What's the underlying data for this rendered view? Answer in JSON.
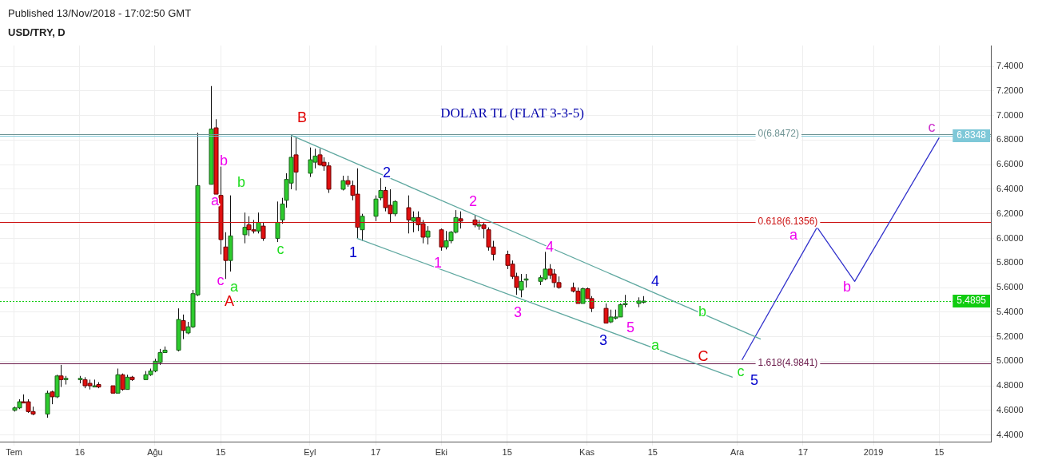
{
  "chart_data": {
    "type": "candlestick",
    "title": "USD/TRY, D",
    "subtitle": "Published 13/Nov/2018 - 17:02:50 GMT",
    "x": [
      "2018-07-02",
      "2018-07-03",
      "2018-07-04",
      "2018-07-05",
      "2018-07-06",
      "2018-07-09",
      "2018-07-10",
      "2018-07-11",
      "2018-07-12",
      "2018-07-13",
      "2018-07-16",
      "2018-07-17",
      "2018-07-18",
      "2018-07-19",
      "2018-07-20",
      "2018-07-23",
      "2018-07-24",
      "2018-07-25",
      "2018-07-26",
      "2018-07-27",
      "2018-07-30",
      "2018-07-31",
      "2018-08-01",
      "2018-08-02",
      "2018-08-03",
      "2018-08-06",
      "2018-08-07",
      "2018-08-08",
      "2018-08-09",
      "2018-08-10",
      "2018-08-13",
      "2018-08-14",
      "2018-08-15",
      "2018-08-16",
      "2018-08-17",
      "2018-08-20",
      "2018-08-21",
      "2018-08-22",
      "2018-08-23",
      "2018-08-24",
      "2018-08-27",
      "2018-08-28",
      "2018-08-29",
      "2018-08-30",
      "2018-08-31",
      "2018-09-03",
      "2018-09-04",
      "2018-09-05",
      "2018-09-06",
      "2018-09-07",
      "2018-09-10",
      "2018-09-11",
      "2018-09-12",
      "2018-09-13",
      "2018-09-14",
      "2018-09-17",
      "2018-09-18",
      "2018-09-19",
      "2018-09-20",
      "2018-09-21",
      "2018-09-24",
      "2018-09-25",
      "2018-09-26",
      "2018-09-27",
      "2018-09-28",
      "2018-10-01",
      "2018-10-02",
      "2018-10-03",
      "2018-10-04",
      "2018-10-05",
      "2018-10-08",
      "2018-10-09",
      "2018-10-10",
      "2018-10-11",
      "2018-10-12",
      "2018-10-15",
      "2018-10-16",
      "2018-10-17",
      "2018-10-18",
      "2018-10-19",
      "2018-10-22",
      "2018-10-23",
      "2018-10-24",
      "2018-10-25",
      "2018-10-26",
      "2018-10-29",
      "2018-10-30",
      "2018-10-31",
      "2018-11-01",
      "2018-11-02",
      "2018-11-05",
      "2018-11-06",
      "2018-11-07",
      "2018-11-08",
      "2018-11-09",
      "2018-11-12",
      "2018-11-13"
    ],
    "ohlc": [
      [
        4.6,
        4.63,
        4.59,
        4.62
      ],
      [
        4.62,
        4.69,
        4.61,
        4.67
      ],
      [
        4.67,
        4.73,
        4.66,
        4.66
      ],
      [
        4.67,
        4.69,
        4.58,
        4.59
      ],
      [
        4.59,
        4.63,
        4.56,
        4.57
      ],
      [
        4.57,
        4.76,
        4.54,
        4.74
      ],
      [
        4.75,
        4.76,
        4.65,
        4.71
      ],
      [
        4.71,
        4.89,
        4.7,
        4.88
      ],
      [
        4.88,
        4.97,
        4.79,
        4.85
      ],
      [
        4.86,
        4.88,
        4.81,
        4.86
      ],
      [
        4.85,
        4.88,
        4.82,
        4.86
      ],
      [
        4.85,
        4.87,
        4.78,
        4.8
      ],
      [
        4.82,
        4.85,
        4.77,
        4.8
      ],
      [
        4.8,
        4.85,
        4.79,
        4.8
      ],
      [
        4.81,
        4.83,
        4.78,
        4.79
      ],
      [
        4.8,
        4.8,
        4.74,
        4.74
      ],
      [
        4.74,
        4.94,
        4.74,
        4.89
      ],
      [
        4.89,
        4.9,
        4.76,
        4.77
      ],
      [
        4.77,
        4.89,
        4.77,
        4.87
      ],
      [
        4.87,
        4.88,
        4.84,
        4.85
      ],
      [
        4.85,
        4.92,
        4.85,
        4.89
      ],
      [
        4.89,
        4.94,
        4.88,
        4.92
      ],
      [
        4.92,
        5.02,
        4.91,
        5.0
      ],
      [
        4.99,
        5.1,
        4.97,
        5.07
      ],
      [
        5.07,
        5.12,
        5.07,
        5.09
      ],
      [
        5.09,
        5.43,
        5.08,
        5.34
      ],
      [
        5.33,
        5.38,
        5.18,
        5.25
      ],
      [
        5.23,
        5.32,
        5.22,
        5.28
      ],
      [
        5.28,
        5.58,
        5.27,
        5.55
      ],
      [
        5.54,
        6.86,
        5.53,
        6.43
      ],
      [
        6.44,
        7.24,
        6.44,
        6.89
      ],
      [
        6.9,
        6.97,
        6.36,
        6.36
      ],
      [
        6.35,
        6.6,
        5.87,
        5.99
      ],
      [
        5.93,
        6.05,
        5.67,
        5.82
      ],
      [
        5.82,
        6.35,
        5.73,
        6.02
      ],
      [
        6.03,
        6.21,
        5.96,
        6.09
      ],
      [
        6.11,
        6.18,
        6.02,
        6.07
      ],
      [
        6.07,
        6.15,
        6.04,
        6.06
      ],
      [
        6.06,
        6.21,
        6.04,
        6.13
      ],
      [
        6.1,
        6.13,
        5.98,
        6.0
      ],
      [
        6.0,
        6.3,
        5.97,
        6.13
      ],
      [
        6.15,
        6.33,
        6.12,
        6.28
      ],
      [
        6.31,
        6.53,
        6.25,
        6.48
      ],
      [
        6.45,
        6.84,
        6.4,
        6.66
      ],
      [
        6.68,
        6.82,
        6.39,
        6.54
      ],
      [
        6.53,
        6.74,
        6.5,
        6.64
      ],
      [
        6.62,
        6.73,
        6.57,
        6.67
      ],
      [
        6.68,
        6.73,
        6.59,
        6.6
      ],
      [
        6.62,
        6.66,
        6.55,
        6.59
      ],
      [
        6.59,
        6.62,
        6.37,
        6.4
      ],
      [
        6.4,
        6.51,
        6.39,
        6.47
      ],
      [
        6.47,
        6.51,
        6.42,
        6.44
      ],
      [
        6.43,
        6.47,
        6.31,
        6.35
      ],
      [
        6.36,
        6.57,
        6.0,
        6.09
      ],
      [
        6.07,
        6.2,
        5.98,
        6.18
      ],
      [
        6.18,
        6.35,
        6.14,
        6.32
      ],
      [
        6.33,
        6.49,
        6.31,
        6.39
      ],
      [
        6.39,
        6.42,
        6.22,
        6.25
      ],
      [
        6.27,
        6.4,
        6.13,
        6.2
      ],
      [
        6.2,
        6.31,
        6.18,
        6.3
      ],
      [
        6.25,
        6.35,
        6.04,
        6.15
      ],
      [
        6.14,
        6.22,
        6.05,
        6.17
      ],
      [
        6.17,
        6.22,
        6.06,
        6.11
      ],
      [
        6.12,
        6.15,
        5.96,
        6.01
      ],
      [
        6.01,
        6.1,
        5.95,
        6.06
      ],
      [
        6.07,
        6.08,
        5.9,
        5.93
      ],
      [
        5.93,
        6.06,
        5.91,
        5.98
      ],
      [
        5.98,
        6.06,
        5.96,
        6.05
      ],
      [
        6.05,
        6.23,
        6.04,
        6.17
      ],
      [
        6.16,
        6.22,
        6.08,
        6.14
      ],
      [
        6.15,
        6.19,
        6.09,
        6.11
      ],
      [
        6.11,
        6.15,
        6.07,
        6.11
      ],
      [
        6.11,
        6.13,
        6.0,
        6.08
      ],
      [
        6.07,
        6.09,
        5.9,
        5.93
      ],
      [
        5.93,
        5.98,
        5.82,
        5.87
      ],
      [
        5.87,
        5.9,
        5.75,
        5.78
      ],
      [
        5.79,
        5.82,
        5.67,
        5.69
      ],
      [
        5.69,
        5.72,
        5.54,
        5.6
      ],
      [
        5.58,
        5.71,
        5.52,
        5.65
      ],
      [
        5.67,
        5.71,
        5.6,
        5.67
      ],
      [
        5.65,
        5.7,
        5.62,
        5.68
      ],
      [
        5.67,
        5.89,
        5.66,
        5.75
      ],
      [
        5.75,
        5.79,
        5.67,
        5.7
      ],
      [
        5.71,
        5.75,
        5.6,
        5.64
      ],
      [
        5.64,
        5.69,
        5.59,
        5.6
      ],
      [
        5.6,
        5.64,
        5.56,
        5.57
      ],
      [
        5.57,
        5.6,
        5.47,
        5.47
      ],
      [
        5.47,
        5.6,
        5.47,
        5.59
      ],
      [
        5.59,
        5.6,
        5.51,
        5.51
      ],
      [
        5.51,
        5.53,
        5.4,
        5.43
      ],
      [
        5.43,
        5.47,
        5.31,
        5.31
      ],
      [
        5.32,
        5.42,
        5.31,
        5.36
      ],
      [
        5.36,
        5.42,
        5.34,
        5.36
      ],
      [
        5.36,
        5.47,
        5.36,
        5.46
      ],
      [
        5.46,
        5.54,
        5.44,
        5.47
      ],
      [
        5.47,
        5.52,
        5.44,
        5.49
      ],
      [
        5.48,
        5.53,
        5.47,
        5.4895
      ]
    ],
    "series": [
      {
        "type": "line",
        "color": "#5fa8a0",
        "x": [
          "2018-08-30",
          "2018-12-08"
        ],
        "values": [
          6.84,
          5.18
        ]
      },
      {
        "type": "line",
        "color": "#5fa8a0",
        "x": [
          "2018-09-13",
          "2018-12-02"
        ],
        "values": [
          6.0,
          4.87
        ]
      },
      {
        "type": "line",
        "color": "#3333cc",
        "x": [
          "2018-12-04",
          "2018-12-20",
          "2018-12-28",
          "2019-01-15"
        ],
        "values": [
          5.01,
          6.09,
          5.65,
          6.82
        ]
      }
    ],
    "ref_lines": [
      {
        "axis": "y",
        "value": 6.8472,
        "label": "0(6.8472)",
        "color": "#6f9494"
      },
      {
        "axis": "y",
        "value": 6.1356,
        "label": "0.618(6.1356)",
        "color": "#cc1111"
      },
      {
        "axis": "y",
        "value": 4.9841,
        "label": "1.618(4.9841)",
        "color": "#6a1a4a"
      },
      {
        "axis": "y2",
        "value": 6.8348,
        "label": "6.8348",
        "color": "#7ec8d8"
      },
      {
        "axis": "y2",
        "value": 5.4895,
        "label": "5.4895",
        "color": "#11cc11",
        "line_style": "dotted"
      }
    ],
    "annotations": [
      "DOLAR TL (FLAT 3-3-5)",
      "B",
      "A",
      "b",
      "a",
      "c",
      "b",
      "a",
      "c",
      "1",
      "2",
      "1",
      "2",
      "3",
      "4",
      "3",
      "5",
      "4",
      "b",
      "a",
      "C",
      "c",
      "5",
      "a",
      "b",
      "c"
    ],
    "xlim": [
      "2018-06-29",
      "2019-01-26"
    ],
    "xticks": [
      {
        "value": "2018-07-02",
        "label": "Tem"
      },
      {
        "value": "2018-07-16",
        "label": "16"
      },
      {
        "value": "2018-08-01",
        "label": "Ağu"
      },
      {
        "value": "2018-08-15",
        "label": "15"
      },
      {
        "value": "2018-09-03",
        "label": "Eyl"
      },
      {
        "value": "2018-09-17",
        "label": "17"
      },
      {
        "value": "2018-10-01",
        "label": "Eki"
      },
      {
        "value": "2018-10-15",
        "label": "15"
      },
      {
        "value": "2018-11-01",
        "label": "Kas"
      },
      {
        "value": "2018-11-15",
        "label": "15"
      },
      {
        "value": "2018-12-03",
        "label": "Ara"
      },
      {
        "value": "2018-12-17",
        "label": "17"
      },
      {
        "value": "2019-01-01",
        "label": "2019"
      },
      {
        "value": "2019-01-15",
        "label": "15"
      }
    ],
    "ylim": [
      4.34,
      7.57
    ],
    "yticks": [
      {
        "value": 4.4,
        "label": "4.4000"
      },
      {
        "value": 4.6,
        "label": "4.6000"
      },
      {
        "value": 4.8,
        "label": "4.8000"
      },
      {
        "value": 5.0,
        "label": "5.0000"
      },
      {
        "value": 5.2,
        "label": "5.2000"
      },
      {
        "value": 5.4,
        "label": "5.4000"
      },
      {
        "value": 5.6,
        "label": "5.6000"
      },
      {
        "value": 5.8,
        "label": "5.8000"
      },
      {
        "value": 6.0,
        "label": "6.0000"
      },
      {
        "value": 6.2,
        "label": "6.2000"
      },
      {
        "value": 6.4,
        "label": "6.4000"
      },
      {
        "value": 6.6,
        "label": "6.6000"
      },
      {
        "value": 6.8,
        "label": "6.8000"
      },
      {
        "value": 7.0,
        "label": "7.0000"
      },
      {
        "value": 7.2,
        "label": "7.2000"
      },
      {
        "value": 7.4,
        "label": "7.4000"
      }
    ],
    "y2lim": [
      4.34,
      7.57
    ],
    "grid": true,
    "legend": false
  }
}
